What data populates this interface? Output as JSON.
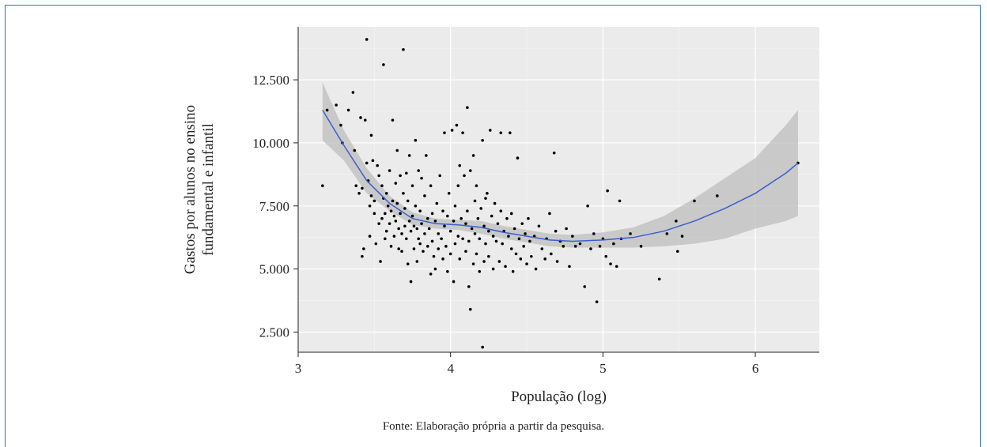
{
  "chart_data": {
    "type": "scatter",
    "xlabel": "População (log)",
    "ylabel_lines": [
      "Gastos por alunos no ensino",
      "fundamental e infantil"
    ],
    "x_ticks": [
      "3",
      "4",
      "5",
      "6"
    ],
    "y_ticks": [
      "2.500",
      "5.000",
      "7.500",
      "10.000",
      "12.500"
    ],
    "x_tick_values": [
      3,
      4,
      5,
      6
    ],
    "y_tick_values": [
      2500,
      5000,
      7500,
      10000,
      12500
    ],
    "xlim": [
      3.0,
      6.42
    ],
    "ylim": [
      1700,
      14600
    ],
    "grid": true,
    "background_color": "#ebebeb",
    "point_color": "#000000",
    "smooth_color": "#3a5fcd",
    "band_color": "#bdbdbd",
    "smooth": {
      "x": [
        3.16,
        3.3,
        3.45,
        3.6,
        3.75,
        3.9,
        4.05,
        4.2,
        4.35,
        4.5,
        4.65,
        4.8,
        5.0,
        5.2,
        5.4,
        5.6,
        5.8,
        6.0,
        6.2,
        6.28
      ],
      "y": [
        11300,
        9900,
        8500,
        7600,
        7000,
        6800,
        6750,
        6650,
        6450,
        6300,
        6150,
        6100,
        6150,
        6250,
        6500,
        6900,
        7400,
        8000,
        8800,
        9200
      ],
      "upper": [
        12400,
        10500,
        9000,
        7900,
        7250,
        7000,
        6950,
        6900,
        6700,
        6550,
        6400,
        6350,
        6450,
        6650,
        7100,
        7800,
        8600,
        9400,
        10700,
        11300
      ],
      "lower": [
        10100,
        9300,
        8000,
        7300,
        6750,
        6600,
        6550,
        6400,
        6200,
        6050,
        5900,
        5850,
        5850,
        5850,
        5900,
        6000,
        6200,
        6600,
        6900,
        7100
      ]
    },
    "points": [
      [
        3.16,
        8300
      ],
      [
        3.19,
        11300
      ],
      [
        3.25,
        11500
      ],
      [
        3.28,
        10700
      ],
      [
        3.29,
        10000
      ],
      [
        3.33,
        11300
      ],
      [
        3.36,
        12000
      ],
      [
        3.37,
        9700
      ],
      [
        3.38,
        8300
      ],
      [
        3.4,
        8000
      ],
      [
        3.41,
        11000
      ],
      [
        3.42,
        8200
      ],
      [
        3.42,
        5500
      ],
      [
        3.43,
        5800
      ],
      [
        3.44,
        10900
      ],
      [
        3.45,
        14100
      ],
      [
        3.45,
        9200
      ],
      [
        3.46,
        8500
      ],
      [
        3.47,
        7500
      ],
      [
        3.47,
        6300
      ],
      [
        3.48,
        10300
      ],
      [
        3.48,
        7900
      ],
      [
        3.49,
        9300
      ],
      [
        3.5,
        7700
      ],
      [
        3.5,
        7200
      ],
      [
        3.51,
        6000
      ],
      [
        3.52,
        9100
      ],
      [
        3.53,
        8700
      ],
      [
        3.53,
        6800
      ],
      [
        3.54,
        5300
      ],
      [
        3.55,
        8300
      ],
      [
        3.55,
        7000
      ],
      [
        3.56,
        13100
      ],
      [
        3.56,
        7800
      ],
      [
        3.57,
        7200
      ],
      [
        3.57,
        6200
      ],
      [
        3.58,
        8000
      ],
      [
        3.58,
        6500
      ],
      [
        3.59,
        7500
      ],
      [
        3.6,
        8900
      ],
      [
        3.6,
        6800
      ],
      [
        3.61,
        7300
      ],
      [
        3.61,
        5900
      ],
      [
        3.62,
        10900
      ],
      [
        3.62,
        7700
      ],
      [
        3.63,
        7100
      ],
      [
        3.63,
        6300
      ],
      [
        3.64,
        8400
      ],
      [
        3.64,
        6900
      ],
      [
        3.65,
        9700
      ],
      [
        3.65,
        7600
      ],
      [
        3.66,
        6600
      ],
      [
        3.66,
        5800
      ],
      [
        3.67,
        8700
      ],
      [
        3.67,
        7200
      ],
      [
        3.68,
        6400
      ],
      [
        3.68,
        5700
      ],
      [
        3.69,
        13700
      ],
      [
        3.69,
        8000
      ],
      [
        3.7,
        7400
      ],
      [
        3.7,
        6700
      ],
      [
        3.71,
        8800
      ],
      [
        3.71,
        6200
      ],
      [
        3.72,
        7700
      ],
      [
        3.72,
        5200
      ],
      [
        3.73,
        9500
      ],
      [
        3.73,
        6900
      ],
      [
        3.74,
        6500
      ],
      [
        3.74,
        4500
      ],
      [
        3.75,
        8300
      ],
      [
        3.75,
        7100
      ],
      [
        3.76,
        6700
      ],
      [
        3.76,
        5800
      ],
      [
        3.77,
        10100
      ],
      [
        3.77,
        7500
      ],
      [
        3.78,
        6600
      ],
      [
        3.78,
        5300
      ],
      [
        3.79,
        8900
      ],
      [
        3.79,
        6200
      ],
      [
        3.8,
        7300
      ],
      [
        3.8,
        6000
      ],
      [
        3.81,
        8600
      ],
      [
        3.81,
        6800
      ],
      [
        3.82,
        5700
      ],
      [
        3.83,
        7900
      ],
      [
        3.83,
        6400
      ],
      [
        3.84,
        9500
      ],
      [
        3.85,
        7000
      ],
      [
        3.85,
        5900
      ],
      [
        3.86,
        6600
      ],
      [
        3.87,
        8300
      ],
      [
        3.87,
        4800
      ],
      [
        3.88,
        7200
      ],
      [
        3.88,
        6100
      ],
      [
        3.89,
        5500
      ],
      [
        3.9,
        6900
      ],
      [
        3.9,
        5000
      ],
      [
        3.91,
        7600
      ],
      [
        3.92,
        6400
      ],
      [
        3.92,
        5800
      ],
      [
        3.93,
        8700
      ],
      [
        3.94,
        6200
      ],
      [
        3.95,
        7300
      ],
      [
        3.95,
        5400
      ],
      [
        3.96,
        10400
      ],
      [
        3.96,
        6700
      ],
      [
        3.97,
        5900
      ],
      [
        3.98,
        7100
      ],
      [
        3.98,
        4900
      ],
      [
        3.99,
        8000
      ],
      [
        4.0,
        6500
      ],
      [
        4.0,
        5600
      ],
      [
        4.01,
        10500
      ],
      [
        4.02,
        6900
      ],
      [
        4.02,
        4500
      ],
      [
        4.03,
        7500
      ],
      [
        4.03,
        6000
      ],
      [
        4.04,
        10700
      ],
      [
        4.05,
        8300
      ],
      [
        4.05,
        6300
      ],
      [
        4.06,
        9100
      ],
      [
        4.06,
        5400
      ],
      [
        4.07,
        7000
      ],
      [
        4.08,
        10400
      ],
      [
        4.08,
        6200
      ],
      [
        4.09,
        8700
      ],
      [
        4.1,
        6800
      ],
      [
        4.1,
        5700
      ],
      [
        4.11,
        11400
      ],
      [
        4.11,
        7300
      ],
      [
        4.12,
        4300
      ],
      [
        4.12,
        6100
      ],
      [
        4.13,
        8900
      ],
      [
        4.13,
        3400
      ],
      [
        4.14,
        6600
      ],
      [
        4.15,
        9500
      ],
      [
        4.15,
        5200
      ],
      [
        4.16,
        7700
      ],
      [
        4.16,
        6400
      ],
      [
        4.17,
        8300
      ],
      [
        4.17,
        5600
      ],
      [
        4.18,
        7000
      ],
      [
        4.19,
        6200
      ],
      [
        4.19,
        4900
      ],
      [
        4.2,
        7400
      ],
      [
        4.21,
        1900
      ],
      [
        4.21,
        10100
      ],
      [
        4.22,
        6700
      ],
      [
        4.22,
        5300
      ],
      [
        4.23,
        7800
      ],
      [
        4.23,
        6000
      ],
      [
        4.24,
        8000
      ],
      [
        4.25,
        6500
      ],
      [
        4.25,
        5500
      ],
      [
        4.26,
        10500
      ],
      [
        4.27,
        7100
      ],
      [
        4.28,
        6300
      ],
      [
        4.28,
        5000
      ],
      [
        4.29,
        7600
      ],
      [
        4.3,
        6100
      ],
      [
        4.31,
        6800
      ],
      [
        4.32,
        5300
      ],
      [
        4.33,
        10400
      ],
      [
        4.33,
        7300
      ],
      [
        4.34,
        6000
      ],
      [
        4.35,
        6500
      ],
      [
        4.36,
        5100
      ],
      [
        4.37,
        7000
      ],
      [
        4.38,
        6300
      ],
      [
        4.39,
        10400
      ],
      [
        4.4,
        5800
      ],
      [
        4.4,
        7200
      ],
      [
        4.41,
        4900
      ],
      [
        4.42,
        6600
      ],
      [
        4.43,
        5600
      ],
      [
        4.44,
        9400
      ],
      [
        4.45,
        6200
      ],
      [
        4.46,
        5400
      ],
      [
        4.47,
        6800
      ],
      [
        4.48,
        5900
      ],
      [
        4.49,
        6400
      ],
      [
        4.5,
        5200
      ],
      [
        4.51,
        7000
      ],
      [
        4.52,
        6100
      ],
      [
        4.53,
        5500
      ],
      [
        4.55,
        6300
      ],
      [
        4.56,
        5000
      ],
      [
        4.58,
        6700
      ],
      [
        4.6,
        5800
      ],
      [
        4.62,
        5400
      ],
      [
        4.63,
        6200
      ],
      [
        4.65,
        7200
      ],
      [
        4.66,
        5600
      ],
      [
        4.68,
        9600
      ],
      [
        4.69,
        6500
      ],
      [
        4.7,
        5300
      ],
      [
        4.72,
        6100
      ],
      [
        4.74,
        5900
      ],
      [
        4.76,
        6600
      ],
      [
        4.78,
        5100
      ],
      [
        4.8,
        6300
      ],
      [
        4.82,
        5900
      ],
      [
        4.85,
        6000
      ],
      [
        4.88,
        4300
      ],
      [
        4.9,
        7500
      ],
      [
        4.92,
        5800
      ],
      [
        4.94,
        6400
      ],
      [
        4.96,
        3700
      ],
      [
        4.98,
        5900
      ],
      [
        5.0,
        6200
      ],
      [
        5.02,
        5500
      ],
      [
        5.03,
        8100
      ],
      [
        5.05,
        5200
      ],
      [
        5.07,
        6000
      ],
      [
        5.09,
        5100
      ],
      [
        5.11,
        7700
      ],
      [
        5.12,
        6200
      ],
      [
        5.18,
        6400
      ],
      [
        5.25,
        5900
      ],
      [
        5.37,
        4600
      ],
      [
        5.42,
        6400
      ],
      [
        5.48,
        6900
      ],
      [
        5.49,
        5700
      ],
      [
        5.52,
        6300
      ],
      [
        5.6,
        7700
      ],
      [
        5.75,
        7900
      ],
      [
        6.28,
        9200
      ]
    ]
  },
  "source_note": "Fonte: Elaboração própria a partir da pesquisa."
}
